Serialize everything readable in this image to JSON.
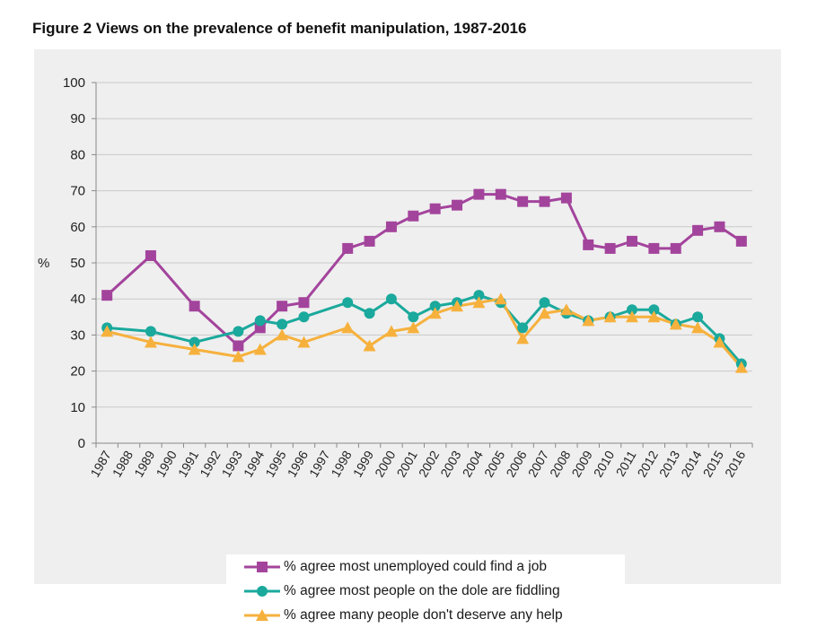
{
  "title": "Figure 2 Views on the prevalence of benefit manipulation, 1987-2016",
  "chart_data": {
    "type": "line",
    "title": "Figure 2 Views on the prevalence of benefit manipulation, 1987-2016",
    "xlabel": "",
    "ylabel": "%",
    "ylim": [
      0,
      100
    ],
    "yticks": [
      "0",
      "10",
      "20",
      "30",
      "40",
      "50",
      "60",
      "70",
      "80",
      "90",
      "100"
    ],
    "grid": true,
    "legend_position": "bottom",
    "categories": [
      "1987",
      "1988",
      "1989",
      "1990",
      "1991",
      "1992",
      "1993",
      "1994",
      "1995",
      "1996",
      "1997",
      "1998",
      "1999",
      "2000",
      "2001",
      "2002",
      "2003",
      "2004",
      "2005",
      "2006",
      "2007",
      "2008",
      "2009",
      "2010",
      "2011",
      "2012",
      "2013",
      "2014",
      "2015",
      "2016"
    ],
    "series": [
      {
        "name": "% agree most unemployed could find a job",
        "color": "#a3449c",
        "marker": "square",
        "values": [
          41,
          null,
          52,
          null,
          38,
          null,
          27,
          32,
          38,
          39,
          null,
          54,
          56,
          60,
          63,
          65,
          66,
          69,
          69,
          67,
          67,
          68,
          55,
          54,
          56,
          54,
          54,
          59,
          60,
          56
        ]
      },
      {
        "name": "% agree most people on the dole are fiddling",
        "color": "#1aa99c",
        "marker": "circle",
        "values": [
          32,
          null,
          31,
          null,
          28,
          null,
          31,
          34,
          33,
          35,
          null,
          39,
          36,
          40,
          35,
          38,
          39,
          41,
          39,
          32,
          39,
          36,
          34,
          35,
          37,
          37,
          33,
          35,
          29,
          22
        ]
      },
      {
        "name": "% agree many people don't deserve any help",
        "color": "#f6b13d",
        "marker": "triangle",
        "values": [
          31,
          null,
          28,
          null,
          26,
          null,
          24,
          26,
          30,
          28,
          null,
          32,
          27,
          31,
          32,
          36,
          38,
          39,
          40,
          29,
          36,
          37,
          34,
          35,
          35,
          35,
          33,
          32,
          28,
          21
        ]
      }
    ]
  }
}
